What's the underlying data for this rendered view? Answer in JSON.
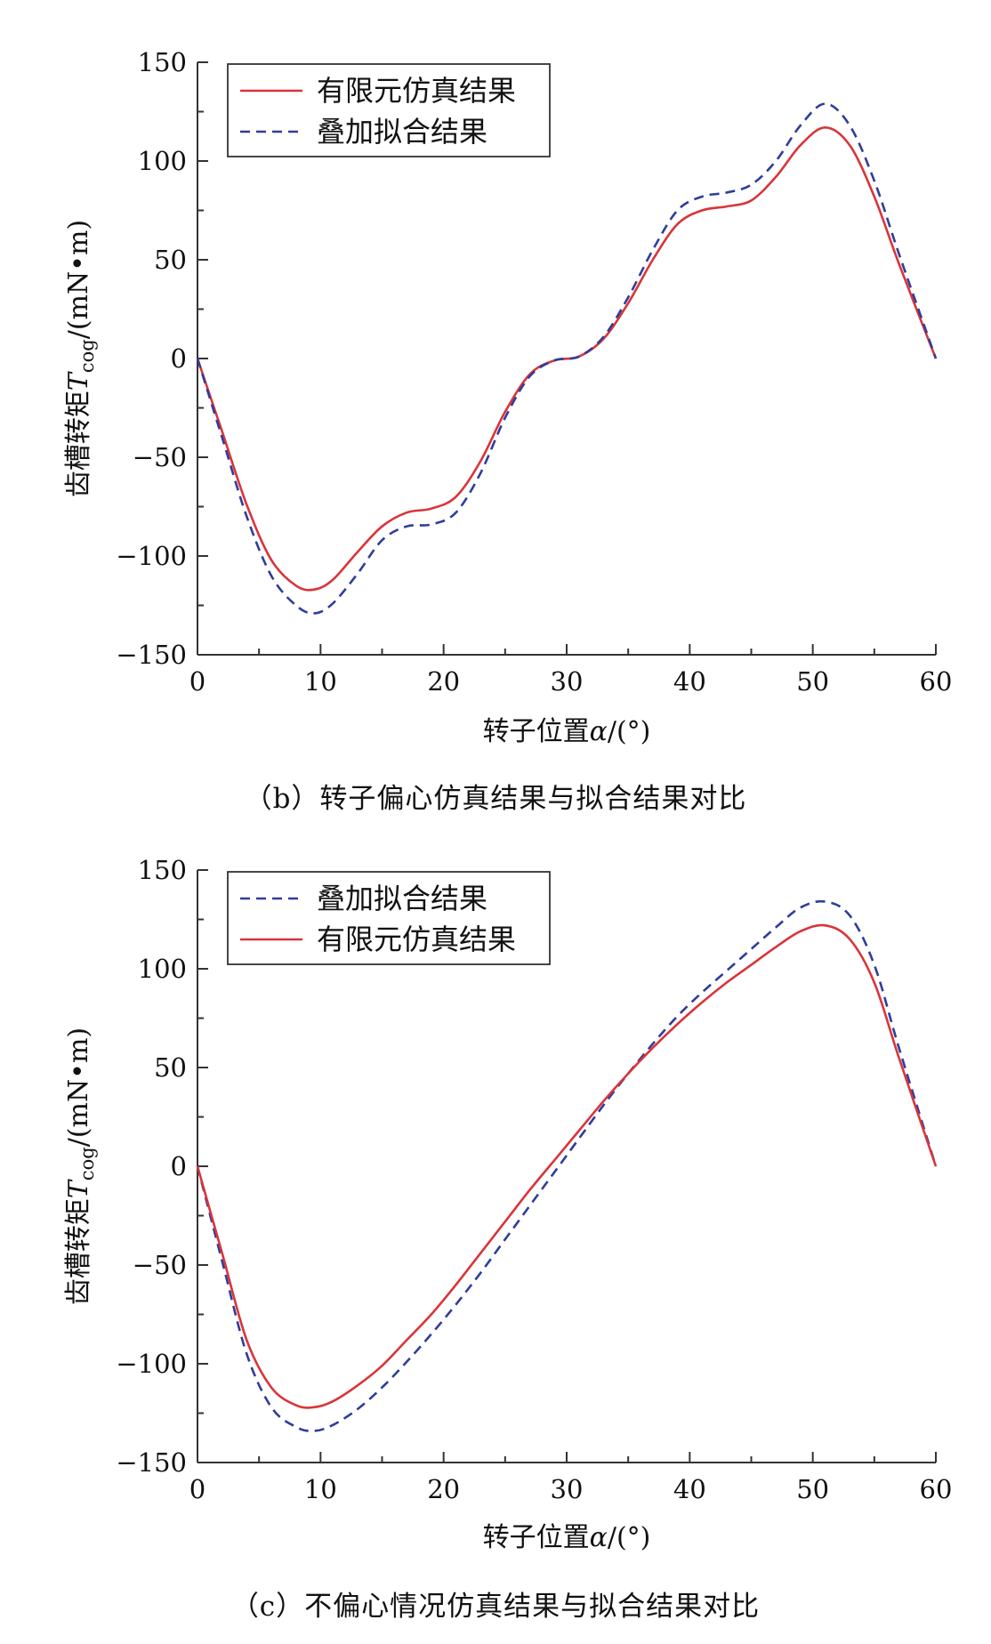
{
  "chart_data": [
    {
      "type": "line",
      "id": "b",
      "caption": "（b）转子偏心仿真结果与拟合结果对比",
      "xlabel": "转子位置α/(°)",
      "ylabel": "齿槽转矩T_cog/(mN•m)",
      "ylabel_prefix": "齿槽转矩",
      "ylabel_symbol": "T",
      "ylabel_subscript": "cog",
      "ylabel_unit": "/(mN•m)",
      "xlabel_text": "转子位置",
      "xlabel_symbol": "α",
      "xlabel_unit": "/(°)",
      "xlim": [
        0,
        60
      ],
      "ylim": [
        -150,
        150
      ],
      "xticks": [
        0,
        10,
        20,
        30,
        40,
        50,
        60
      ],
      "yticks": [
        150,
        100,
        50,
        0,
        -50,
        -100,
        -150
      ],
      "ytick_labels": [
        "150",
        "100",
        "50",
        "0",
        "−50",
        "−100",
        "−150"
      ],
      "grid": false,
      "legend_position": "top-left",
      "series": [
        {
          "name": "有限元仿真结果",
          "style": "solid",
          "color": "#d9343a",
          "x": [
            0,
            2,
            4,
            6,
            8,
            9.5,
            11,
            13,
            15,
            17,
            19,
            21,
            23,
            25,
            27,
            29,
            31,
            33,
            35,
            37,
            39,
            41,
            43,
            45,
            47,
            49,
            51,
            53,
            55,
            57,
            60
          ],
          "y": [
            0,
            -37,
            -74,
            -102,
            -115,
            -117,
            -112,
            -98,
            -85,
            -78,
            -76,
            -70,
            -52,
            -27,
            -8,
            -1,
            1,
            10,
            28,
            50,
            68,
            75,
            77,
            80,
            92,
            108,
            117,
            108,
            82,
            48,
            0
          ]
        },
        {
          "name": "叠加拟合结果",
          "style": "dashed",
          "color": "#2f3d9c",
          "x": [
            0,
            2,
            4,
            6,
            8,
            9.5,
            11,
            13,
            15,
            17,
            19,
            21,
            23,
            25,
            27,
            29,
            31,
            33,
            35,
            37,
            39,
            41,
            43,
            45,
            47,
            49,
            51,
            53,
            55,
            57,
            60
          ],
          "y": [
            0,
            -40,
            -80,
            -110,
            -125,
            -129,
            -124,
            -109,
            -92,
            -85,
            -84,
            -78,
            -58,
            -30,
            -9,
            -1,
            1,
            11,
            31,
            55,
            75,
            82,
            84,
            88,
            100,
            118,
            129,
            118,
            90,
            53,
            0
          ]
        }
      ]
    },
    {
      "type": "line",
      "id": "c",
      "caption": "（c）不偏心情况仿真结果与拟合结果对比",
      "xlabel": "转子位置α/(°)",
      "ylabel": "齿槽转矩T_cog/(mN•m)",
      "ylabel_prefix": "齿槽转矩",
      "ylabel_symbol": "T",
      "ylabel_subscript": "cog",
      "ylabel_unit": "/(mN•m)",
      "xlabel_text": "转子位置",
      "xlabel_symbol": "α",
      "xlabel_unit": "/(°)",
      "xlim": [
        0,
        60
      ],
      "ylim": [
        -150,
        150
      ],
      "xticks": [
        0,
        10,
        20,
        30,
        40,
        50,
        60
      ],
      "yticks": [
        150,
        100,
        50,
        0,
        -50,
        -100,
        -150
      ],
      "ytick_labels": [
        "150",
        "100",
        "50",
        "0",
        "−50",
        "−100",
        "−150"
      ],
      "grid": false,
      "legend_position": "top-left",
      "series": [
        {
          "name": "叠加拟合结果",
          "style": "dashed",
          "color": "#2f3d9c",
          "x": [
            0,
            2,
            4,
            6,
            8,
            9.5,
            11,
            13,
            15,
            17,
            19,
            21,
            23,
            25,
            27,
            29,
            31,
            33,
            35,
            37,
            39,
            41,
            43,
            45,
            47,
            49,
            51,
            53,
            55,
            57,
            60
          ],
          "y": [
            0,
            -48,
            -95,
            -122,
            -132,
            -134,
            -131,
            -123,
            -112,
            -99,
            -85,
            -70,
            -54,
            -37,
            -20,
            -3,
            14,
            31,
            47,
            62,
            76,
            88,
            99,
            110,
            121,
            131,
            134,
            127,
            102,
            60,
            0
          ]
        },
        {
          "name": "有限元仿真结果",
          "style": "solid",
          "color": "#d9343a",
          "x": [
            0,
            2,
            4,
            6,
            8,
            9.5,
            11,
            13,
            15,
            17,
            19,
            21,
            23,
            25,
            27,
            29,
            31,
            33,
            35,
            37,
            39,
            41,
            43,
            45,
            47,
            49,
            51,
            53,
            55,
            57,
            60
          ],
          "y": [
            0,
            -44,
            -88,
            -112,
            -121,
            -122,
            -119,
            -111,
            -101,
            -88,
            -75,
            -60,
            -44,
            -28,
            -12,
            3,
            18,
            33,
            47,
            60,
            72,
            83,
            93,
            102,
            111,
            119,
            122,
            115,
            93,
            55,
            0
          ]
        }
      ]
    }
  ]
}
